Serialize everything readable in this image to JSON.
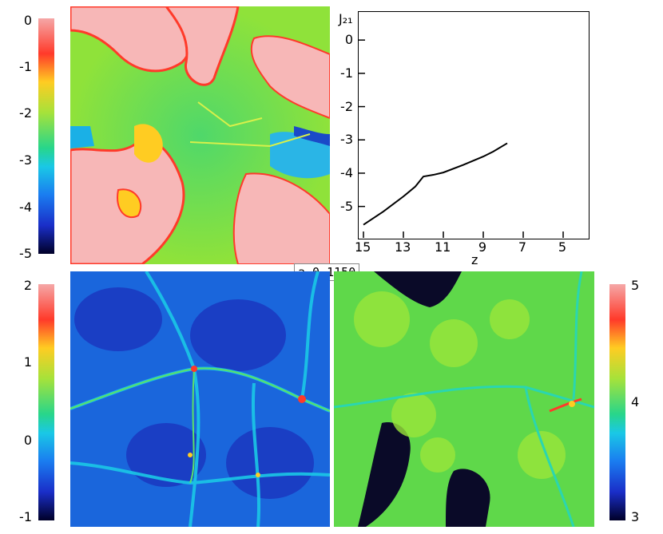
{
  "panels": {
    "top_left_colorbar": {
      "ticks": [
        "0",
        "-1",
        "-2",
        "-3",
        "-4",
        "-5"
      ]
    },
    "bottom_left_colorbar": {
      "ticks": [
        "2",
        "1",
        "0",
        "-1"
      ]
    },
    "bottom_right_colorbar": {
      "ticks": [
        "5",
        "4",
        "3"
      ]
    },
    "redshift_label": "a 0.1150"
  },
  "chart_data": {
    "type": "line",
    "ylabel": "J₂₁",
    "xlabel": "z",
    "x_ticks": [
      "15",
      "13",
      "11",
      "9",
      "7",
      "5"
    ],
    "y_ticks": [
      "0",
      "-1",
      "-2",
      "-3",
      "-4",
      "-5"
    ],
    "xlim": [
      15,
      4
    ],
    "ylim": [
      -5.8,
      0.7
    ],
    "series": [
      {
        "x": [
          15.0,
          14.0,
          13.0,
          12.4,
          12.0,
          11.5,
          11.0,
          10.0,
          9.0,
          8.5,
          7.8
        ],
        "y": [
          -5.55,
          -5.15,
          -4.7,
          -4.4,
          -4.1,
          -4.05,
          -3.98,
          -3.75,
          -3.5,
          -3.35,
          -3.1
        ]
      }
    ]
  }
}
